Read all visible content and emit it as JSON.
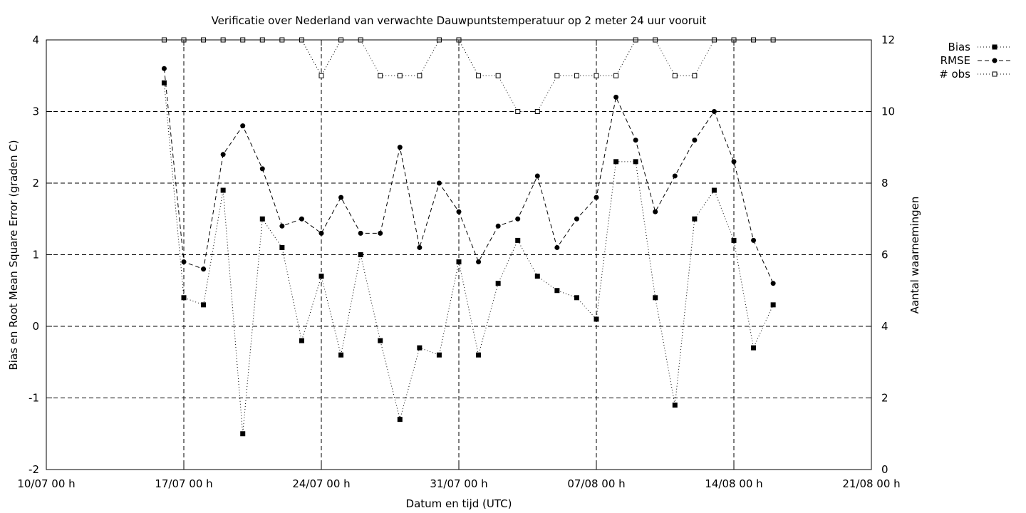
{
  "chart_data": {
    "type": "line",
    "title": "Verificatie over Nederland van verwachte Dauwpuntstemperatuur op 2 meter 24 uur vooruit",
    "xlabel": "Datum en tijd (UTC)",
    "ylabel": "Bias en Root Mean Square Error (graden C)",
    "y2label": "Aantal waarnemingen",
    "xlim": [
      "2007-07-10 00:00",
      "2007-08-21 00:00"
    ],
    "xtick_labels": [
      "10/07 00 h",
      "17/07 00 h",
      "24/07 00 h",
      "31/07 00 h",
      "07/08 00 h",
      "14/08 00 h",
      "21/08 00 h"
    ],
    "ylim": [
      -2,
      4
    ],
    "ytick_labels": [
      "-2",
      "-1",
      "0",
      "1",
      "2",
      "3",
      "4"
    ],
    "y2lim": [
      0,
      12
    ],
    "y2tick_labels": [
      "0",
      "2",
      "4",
      "6",
      "8",
      "10",
      "12"
    ],
    "grid": "dashed at major ticks",
    "legend_position": "top-right, outside plot",
    "x": [
      "2007-07-16",
      "2007-07-17",
      "2007-07-18",
      "2007-07-19",
      "2007-07-20",
      "2007-07-21",
      "2007-07-22",
      "2007-07-23",
      "2007-07-24",
      "2007-07-25",
      "2007-07-26",
      "2007-07-27",
      "2007-07-28",
      "2007-07-29",
      "2007-07-30",
      "2007-07-31",
      "2007-08-01",
      "2007-08-02",
      "2007-08-03",
      "2007-08-04",
      "2007-08-05",
      "2007-08-06",
      "2007-08-07",
      "2007-08-08",
      "2007-08-09",
      "2007-08-10",
      "2007-08-11",
      "2007-08-12",
      "2007-08-13",
      "2007-08-14",
      "2007-08-15",
      "2007-08-16"
    ],
    "series": [
      {
        "name": "Bias",
        "axis": "y1",
        "style": "dotted",
        "marker": "filled-square",
        "values": [
          3.4,
          0.4,
          0.3,
          1.9,
          -1.5,
          1.5,
          1.1,
          -0.2,
          0.7,
          -0.4,
          1.0,
          -0.2,
          -1.3,
          -0.3,
          -0.4,
          0.9,
          -0.4,
          0.6,
          1.2,
          0.7,
          0.5,
          0.4,
          0.1,
          2.3,
          2.3,
          0.4,
          -1.1,
          1.5,
          1.9,
          1.2,
          -0.3,
          0.3
        ]
      },
      {
        "name": "RMSE",
        "axis": "y1",
        "style": "dashed",
        "marker": "filled-circle",
        "values": [
          3.6,
          0.9,
          0.8,
          2.4,
          2.8,
          2.2,
          1.4,
          1.5,
          1.3,
          1.8,
          1.3,
          1.3,
          2.5,
          1.1,
          2.0,
          1.6,
          0.9,
          1.4,
          1.5,
          2.1,
          1.1,
          1.5,
          1.8,
          3.2,
          2.6,
          1.6,
          2.1,
          2.6,
          3.0,
          2.3,
          1.2,
          0.6
        ]
      },
      {
        "name": "# obs",
        "axis": "y2",
        "style": "dotted",
        "marker": "open-square",
        "values": [
          12,
          12,
          12,
          12,
          12,
          12,
          12,
          12,
          11,
          12,
          12,
          11,
          11,
          11,
          12,
          12,
          11,
          11,
          10,
          10,
          11,
          11,
          11,
          11,
          12,
          12,
          11,
          11,
          12,
          12,
          12,
          12
        ]
      }
    ]
  }
}
